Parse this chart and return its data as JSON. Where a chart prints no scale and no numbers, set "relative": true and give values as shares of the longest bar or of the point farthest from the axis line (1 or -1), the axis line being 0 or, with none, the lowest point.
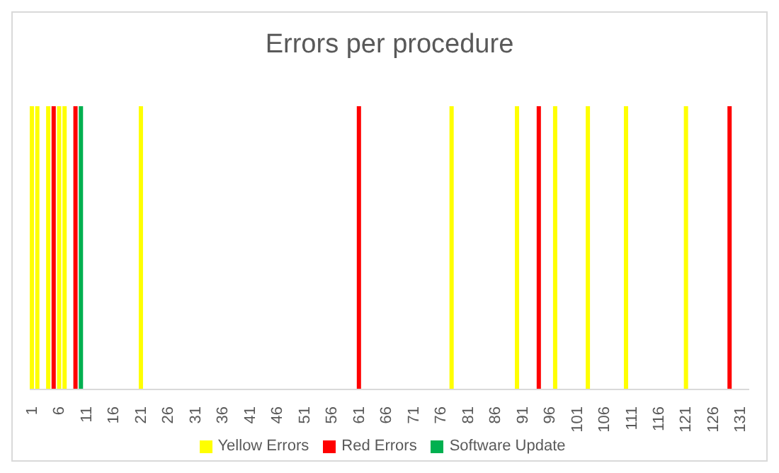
{
  "chart_data": {
    "type": "bar",
    "title": "Errors per procedure",
    "relative": true,
    "legend": "bottom",
    "grid": false,
    "categories": [
      "1",
      null,
      null,
      null,
      null,
      "6",
      null,
      null,
      null,
      null,
      "11",
      null,
      null,
      null,
      null,
      "16",
      null,
      null,
      null,
      null,
      "21",
      null,
      null,
      null,
      null,
      "26",
      null,
      null,
      null,
      null,
      "31",
      null,
      null,
      null,
      null,
      "36",
      null,
      null,
      null,
      null,
      "41",
      null,
      null,
      null,
      null,
      "46",
      null,
      null,
      null,
      null,
      "51",
      null,
      null,
      null,
      null,
      "56",
      null,
      null,
      null,
      null,
      "61",
      null,
      null,
      null,
      null,
      "66",
      null,
      null,
      null,
      null,
      "71",
      null,
      null,
      null,
      null,
      "76",
      null,
      null,
      null,
      null,
      "81",
      null,
      null,
      null,
      null,
      "86",
      null,
      null,
      null,
      null,
      "91",
      null,
      null,
      null,
      null,
      "96",
      null,
      null,
      null,
      null,
      "101",
      null,
      null,
      null,
      null,
      "106",
      null,
      null,
      null,
      null,
      "111",
      null,
      null,
      null,
      null,
      "116",
      null,
      null,
      null,
      null,
      "121",
      null,
      null,
      null,
      null,
      "126",
      null,
      null,
      null,
      null,
      "131",
      null
    ],
    "series": [
      {
        "name": "Yellow Errors",
        "color": "#ffff00",
        "values": [
          1,
          1,
          null,
          1,
          null,
          1,
          1,
          null,
          null,
          null,
          null,
          null,
          null,
          null,
          null,
          null,
          null,
          null,
          null,
          null,
          1,
          null,
          null,
          null,
          null,
          null,
          null,
          null,
          null,
          null,
          null,
          null,
          null,
          null,
          null,
          null,
          null,
          null,
          null,
          null,
          null,
          null,
          null,
          null,
          null,
          null,
          null,
          null,
          null,
          null,
          null,
          null,
          null,
          null,
          null,
          null,
          null,
          null,
          null,
          null,
          null,
          null,
          null,
          null,
          null,
          null,
          null,
          null,
          null,
          null,
          null,
          null,
          null,
          null,
          null,
          null,
          null,
          1,
          null,
          null,
          null,
          null,
          null,
          null,
          null,
          null,
          null,
          null,
          null,
          1,
          null,
          null,
          null,
          null,
          null,
          null,
          1,
          null,
          null,
          null,
          null,
          null,
          1,
          null,
          null,
          null,
          null,
          null,
          null,
          1,
          null,
          null,
          null,
          null,
          null,
          null,
          null,
          null,
          null,
          null,
          1,
          null,
          null,
          null,
          null,
          null,
          null,
          null,
          null,
          null,
          null,
          null
        ]
      },
      {
        "name": "Red Errors",
        "color": "#ff0000",
        "values": [
          null,
          null,
          null,
          null,
          1,
          null,
          null,
          null,
          1,
          null,
          null,
          null,
          null,
          null,
          null,
          null,
          null,
          null,
          null,
          null,
          null,
          null,
          null,
          null,
          null,
          null,
          null,
          null,
          null,
          null,
          null,
          null,
          null,
          null,
          null,
          null,
          null,
          null,
          null,
          null,
          null,
          null,
          null,
          null,
          null,
          null,
          null,
          null,
          null,
          null,
          null,
          null,
          null,
          null,
          null,
          null,
          null,
          null,
          null,
          null,
          1,
          null,
          null,
          null,
          null,
          null,
          null,
          null,
          null,
          null,
          null,
          null,
          null,
          null,
          null,
          null,
          null,
          null,
          null,
          null,
          null,
          null,
          null,
          null,
          null,
          null,
          null,
          null,
          null,
          null,
          null,
          null,
          null,
          1,
          null,
          null,
          null,
          null,
          null,
          null,
          null,
          null,
          null,
          null,
          null,
          null,
          null,
          null,
          null,
          null,
          null,
          null,
          null,
          null,
          null,
          null,
          null,
          null,
          null,
          null,
          null,
          null,
          null,
          null,
          null,
          null,
          null,
          null,
          1,
          null,
          null,
          null
        ]
      },
      {
        "name": "Software Update",
        "color": "#00b050",
        "values": [
          null,
          null,
          null,
          null,
          null,
          null,
          null,
          null,
          null,
          1,
          null,
          null,
          null,
          null,
          null,
          null,
          null,
          null,
          null,
          null,
          null,
          null,
          null,
          null,
          null,
          null,
          null,
          null,
          null,
          null,
          null,
          null,
          null,
          null,
          null,
          null,
          null,
          null,
          null,
          null,
          null,
          null,
          null,
          null,
          null,
          null,
          null,
          null,
          null,
          null,
          null,
          null,
          null,
          null,
          null,
          null,
          null,
          null,
          null,
          null,
          null,
          null,
          null,
          null,
          null,
          null,
          null,
          null,
          null,
          null,
          null,
          null,
          null,
          null,
          null,
          null,
          null,
          null,
          null,
          null,
          null,
          null,
          null,
          null,
          null,
          null,
          null,
          null,
          null,
          null,
          null,
          null,
          null,
          null,
          null,
          null,
          null,
          null,
          null,
          null,
          null,
          null,
          null,
          null,
          null,
          null,
          null,
          null,
          null,
          null,
          null,
          null,
          null,
          null,
          null,
          null,
          null,
          null,
          null,
          null,
          null,
          null,
          null,
          null,
          null,
          null,
          null,
          null,
          null,
          null,
          null,
          null
        ]
      }
    ]
  }
}
